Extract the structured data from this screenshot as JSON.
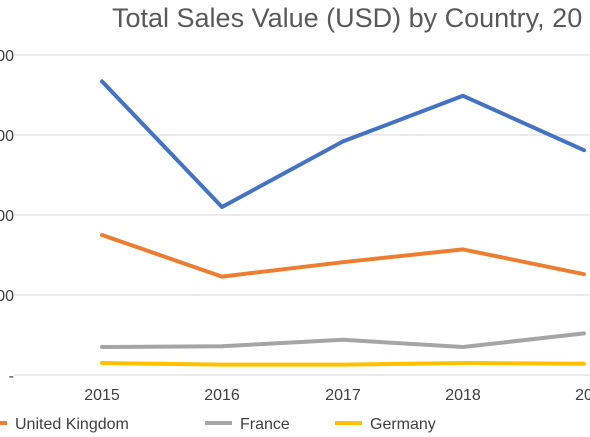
{
  "chart_data": {
    "type": "line",
    "title": "Total Sales Value (USD) by Country, 20",
    "x": [
      "2015",
      "2016",
      "2017",
      "2018",
      "20"
    ],
    "y_tick_labels": [
      "00",
      "00",
      "00",
      "00",
      "-"
    ],
    "grid": true,
    "legend_position": "bottom",
    "series": [
      {
        "name": "",
        "color": "#4472C4",
        "values": [
          367,
          210,
          292,
          349,
          281
        ]
      },
      {
        "name": "United Kingdom",
        "color": "#ED7D31",
        "values": [
          175,
          123,
          141,
          157,
          126
        ]
      },
      {
        "name": "France",
        "color": "#A5A5A5",
        "values": [
          35,
          36,
          44,
          35,
          52
        ]
      },
      {
        "name": "Germany",
        "color": "#FFC000",
        "values": [
          15,
          13,
          13,
          15,
          14
        ]
      }
    ]
  }
}
